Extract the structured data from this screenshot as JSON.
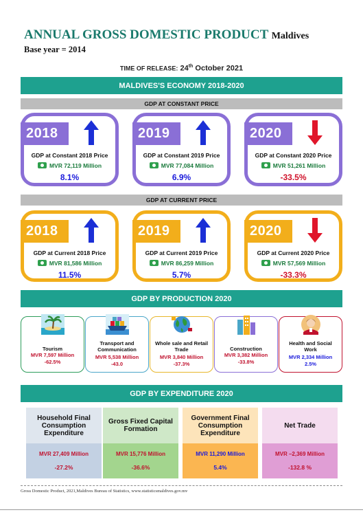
{
  "header": {
    "title": "ANNUAL GROSS DOMESTIC PRODUCT",
    "country": "Maldives",
    "base_year": "Base year = 2014",
    "release_label": "TIME OF RELEASE:",
    "release_day": "24",
    "release_suffix": "th",
    "release_rest": "October 2021"
  },
  "economy_banner": "MALDIVES'S ECONOMY 2018-2020",
  "constant": {
    "banner": "GDP AT CONSTANT PRICE",
    "cards": [
      {
        "year": "2018",
        "label": "GDP at Constant 2018 Price",
        "value": "MVR 72,119 Million",
        "growth": "8.1%",
        "direction": "up",
        "growth_color": "#1a1adb"
      },
      {
        "year": "2019",
        "label": "GDP at Constant 2019 Price",
        "value": "MVR 77,084 Million",
        "growth": "6.9%",
        "direction": "up",
        "growth_color": "#1a1adb"
      },
      {
        "year": "2020",
        "label": "GDP at Constant 2020 Price",
        "value": "MVR 51,261 Million",
        "growth": "-33.5%",
        "direction": "down",
        "growth_color": "#d0122a"
      }
    ]
  },
  "current": {
    "banner": "GDP AT CURRENT PRICE",
    "cards": [
      {
        "year": "2018",
        "label": "GDP at Current 2018 Price",
        "value": "MVR 81,586 Million",
        "growth": "11.5%",
        "direction": "up",
        "growth_color": "#1a1adb"
      },
      {
        "year": "2019",
        "label": "GDP at Current 2019 Price",
        "value": "MVR 86,259 Million",
        "growth": "5.7%",
        "direction": "up",
        "growth_color": "#1a1adb"
      },
      {
        "year": "2020",
        "label": "GDP at Current 2020 Price",
        "value": "MVR 57,569 Million",
        "growth": "-33.3%",
        "direction": "down",
        "growth_color": "#d0122a"
      }
    ]
  },
  "production": {
    "banner": "GDP BY PRODUCTION 2020",
    "sectors": [
      {
        "name": "Tourism",
        "value": "MVR 7,597 Million",
        "pct": "-62.5%",
        "icon": "island-icon",
        "border": "#2c9c5a",
        "value_color": "#c0122e"
      },
      {
        "name": "Transport and Communication",
        "value": "MVR 5,538 Million",
        "pct": "-43.0",
        "icon": "ship-icon",
        "border": "#4aa6c8",
        "value_color": "#c0122e"
      },
      {
        "name": "Whole sale and Retail Trade",
        "value": "MVR 3,840 Million",
        "pct": "-37.3%",
        "icon": "globe-icon",
        "border": "#e8b62a",
        "value_color": "#c0122e"
      },
      {
        "name": "Construction",
        "value": "MVR 3,382 Million",
        "pct": "-33.8%",
        "icon": "building-icon",
        "border": "#8a6fd6",
        "value_color": "#c0122e"
      },
      {
        "name": "Health and Social Work",
        "value": "MVR  2,334 Million",
        "pct": "2.5%",
        "icon": "doctor-icon",
        "border": "#c0122e",
        "value_color": "#1a1adb"
      }
    ]
  },
  "expenditure": {
    "banner": "GDP BY EXPENDITURE 2020",
    "items": [
      {
        "head": "Household Final Consumption Expenditure",
        "value": "MVR 27,409 Million",
        "pct": "-27.2%",
        "head_bg": "#dfe6ee",
        "body_bg": "#c3d1e3",
        "value_color": "#c0122e"
      },
      {
        "head": "Gross Fixed Capital Formation",
        "value": "MVR 15,776 Million",
        "pct": "-36.6%",
        "head_bg": "#cfe8c8",
        "body_bg": "#a3d58e",
        "value_color": "#c0122e"
      },
      {
        "head": "Government Final Consumption Expenditure",
        "value": "MVR 11,290 Million",
        "pct": "5.4%",
        "head_bg": "#fde4ba",
        "body_bg": "#fbb651",
        "value_color": "#1a1adb"
      },
      {
        "head": "Net Trade",
        "value": "MVR –2,369 Million",
        "pct": "-132.8 %",
        "head_bg": "#f4dcef",
        "body_bg": "#e09ed5",
        "value_color": "#c0122e"
      }
    ]
  },
  "footer": "Gross Domestic Product, 2021,Maldives Bureau of Statistics, www.statisticsmaldives.gov.mv"
}
